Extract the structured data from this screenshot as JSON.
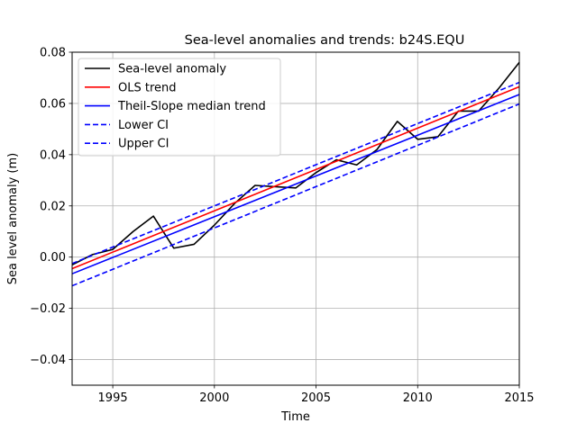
{
  "chart_data": {
    "type": "line",
    "title": "Sea-level anomalies and trends: b24S.EQU",
    "xlabel": "Time",
    "ylabel": "Sea level anomaly (m)",
    "xlim": [
      1993,
      2015
    ],
    "ylim": [
      -0.05,
      0.08
    ],
    "xticks": [
      1995,
      2000,
      2005,
      2010,
      2015
    ],
    "yticks": [
      -0.04,
      -0.02,
      0.0,
      0.02,
      0.04,
      0.06,
      0.08
    ],
    "ytick_labels": [
      "−0.04",
      "−0.02",
      "0.00",
      "0.02",
      "0.04",
      "0.06",
      "0.08"
    ],
    "grid": true,
    "legend_position": "top-left",
    "series": [
      {
        "name": "Sea-level anomaly",
        "color": "#000000",
        "style": "solid",
        "x": [
          1993,
          1994,
          1995,
          1996,
          1997,
          1998,
          1999,
          2000,
          2001,
          2002,
          2003,
          2004,
          2005,
          2006,
          2007,
          2008,
          2009,
          2010,
          2011,
          2012,
          2013,
          2014,
          2015
        ],
        "y": [
          -0.003,
          0.001,
          0.003,
          0.01,
          0.016,
          0.0035,
          0.005,
          0.0125,
          0.021,
          0.028,
          0.0275,
          0.027,
          0.033,
          0.038,
          0.036,
          0.042,
          0.053,
          0.046,
          0.047,
          0.057,
          0.057,
          0.066,
          0.076
        ]
      },
      {
        "name": "OLS trend",
        "color": "#ff0000",
        "style": "solid",
        "x": [
          1993,
          2015
        ],
        "y": [
          -0.0045,
          0.0665
        ]
      },
      {
        "name": "Theil-Slope median trend",
        "color": "#0000ff",
        "style": "solid",
        "x": [
          1993,
          2015
        ],
        "y": [
          -0.0065,
          0.0635
        ]
      },
      {
        "name": "Lower CI",
        "color": "#0000ff",
        "style": "dashed",
        "x": [
          1993,
          2015
        ],
        "y": [
          -0.0112,
          0.0598
        ]
      },
      {
        "name": "Upper CI",
        "color": "#0000ff",
        "style": "dashed",
        "x": [
          1993,
          2015
        ],
        "y": [
          -0.0025,
          0.0682
        ]
      }
    ]
  }
}
